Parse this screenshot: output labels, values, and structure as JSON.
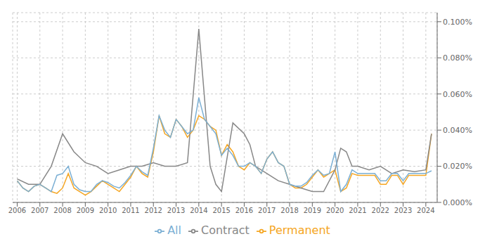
{
  "chart_data": {
    "type": "line",
    "xlim": [
      2005.8,
      2024.5
    ],
    "xticks": [
      2006,
      2007,
      2008,
      2009,
      2010,
      2011,
      2012,
      2013,
      2014,
      2015,
      2016,
      2017,
      2018,
      2019,
      2020,
      2021,
      2022,
      2023,
      2024
    ],
    "ylim": [
      0.0,
      0.00105
    ],
    "yticks": [
      {
        "value": 0.0,
        "label": "0.000%"
      },
      {
        "value": 0.0002,
        "label": "0.020%"
      },
      {
        "value": 0.0004,
        "label": "0.040%"
      },
      {
        "value": 0.0006,
        "label": "0.060%"
      },
      {
        "value": 0.0008,
        "label": "0.080%"
      },
      {
        "value": 0.001,
        "label": "0.100%"
      }
    ],
    "grid": true,
    "legend": "bottom",
    "series": [
      {
        "name": "Permanent",
        "color": "#f5a623",
        "x": [
          2006.0,
          2006.25,
          2006.5,
          2006.75,
          2007.0,
          2007.25,
          2007.5,
          2007.75,
          2008.0,
          2008.25,
          2008.5,
          2008.75,
          2009.0,
          2009.25,
          2009.5,
          2009.75,
          2010.0,
          2010.25,
          2010.5,
          2010.75,
          2011.0,
          2011.25,
          2011.5,
          2011.75,
          2012.0,
          2012.25,
          2012.5,
          2012.75,
          2013.0,
          2013.25,
          2013.5,
          2013.75,
          2014.0,
          2014.25,
          2014.5,
          2014.75,
          2015.0,
          2015.25,
          2015.5,
          2015.75,
          2016.0,
          2016.25,
          2016.5,
          2016.75,
          2017.0,
          2017.25,
          2017.5,
          2017.75,
          2018.0,
          2018.25,
          2018.5,
          2018.75,
          2019.0,
          2019.25,
          2019.5,
          2019.75,
          2020.0,
          2020.25,
          2020.5,
          2020.75,
          2021.0,
          2021.25,
          2021.5,
          2021.75,
          2022.0,
          2022.25,
          2022.5,
          2022.75,
          2023.0,
          2023.25,
          2023.5,
          2023.75,
          2024.0,
          2024.25
        ],
        "values": [
          0.00012,
          8e-05,
          6e-05,
          9e-05,
          0.0001,
          8e-05,
          6e-05,
          5e-05,
          8e-05,
          0.00016,
          8e-05,
          6e-05,
          4e-05,
          6e-05,
          9e-05,
          0.00012,
          0.0001,
          8e-05,
          6e-05,
          0.0001,
          0.00014,
          0.0002,
          0.00016,
          0.00014,
          0.00028,
          0.00048,
          0.00038,
          0.00036,
          0.00046,
          0.00042,
          0.00036,
          0.0004,
          0.00048,
          0.00046,
          0.00042,
          0.0004,
          0.00026,
          0.00032,
          0.00028,
          0.0002,
          0.00018,
          0.00022,
          0.0002,
          0.00016,
          0.00024,
          0.00028,
          0.00022,
          0.0002,
          0.0001,
          8e-05,
          8e-05,
          0.0001,
          0.00014,
          0.00018,
          0.00014,
          0.00016,
          0.00018,
          6e-05,
          8e-05,
          0.00016,
          0.00015,
          0.00015,
          0.00015,
          0.00015,
          0.0001,
          0.0001,
          0.00015,
          0.00015,
          0.0001,
          0.00015,
          0.00015,
          0.00015,
          0.00015,
          0.00038
        ]
      },
      {
        "name": "Contract",
        "color": "#888888",
        "x": [
          2006.0,
          2006.5,
          2007.0,
          2007.5,
          2008.0,
          2008.5,
          2009.0,
          2009.5,
          2010.0,
          2010.5,
          2011.0,
          2011.5,
          2012.0,
          2012.5,
          2013.0,
          2013.5,
          2014.0,
          2014.25,
          2014.5,
          2014.75,
          2015.0,
          2015.5,
          2016.0,
          2016.25,
          2016.5,
          2017.0,
          2017.5,
          2018.0,
          2018.5,
          2019.0,
          2019.5,
          2020.0,
          2020.25,
          2020.5,
          2020.75,
          2021.0,
          2021.5,
          2022.0,
          2022.5,
          2023.0,
          2023.5,
          2024.0,
          2024.25
        ],
        "values": [
          0.00013,
          0.0001,
          0.0001,
          0.0002,
          0.00038,
          0.00028,
          0.00022,
          0.0002,
          0.00016,
          0.00018,
          0.0002,
          0.0002,
          0.00022,
          0.0002,
          0.0002,
          0.00022,
          0.00096,
          0.00058,
          0.0002,
          0.0001,
          6e-05,
          0.00044,
          0.00038,
          0.00032,
          0.0002,
          0.00016,
          0.00012,
          0.0001,
          8e-05,
          6e-05,
          6e-05,
          0.00018,
          0.0003,
          0.00028,
          0.0002,
          0.0002,
          0.00018,
          0.0002,
          0.00016,
          0.00018,
          0.00017,
          0.00018,
          0.00038
        ]
      },
      {
        "name": "All",
        "color": "#7bafd4",
        "x": [
          2006.0,
          2006.25,
          2006.5,
          2006.75,
          2007.0,
          2007.25,
          2007.5,
          2007.75,
          2008.0,
          2008.25,
          2008.5,
          2008.75,
          2009.0,
          2009.25,
          2009.5,
          2009.75,
          2010.0,
          2010.25,
          2010.5,
          2010.75,
          2011.0,
          2011.25,
          2011.5,
          2011.75,
          2012.0,
          2012.25,
          2012.5,
          2012.75,
          2013.0,
          2013.25,
          2013.5,
          2013.75,
          2014.0,
          2014.25,
          2014.5,
          2014.75,
          2015.0,
          2015.25,
          2015.5,
          2015.75,
          2016.0,
          2016.25,
          2016.5,
          2016.75,
          2017.0,
          2017.25,
          2017.5,
          2017.75,
          2018.0,
          2018.25,
          2018.5,
          2018.75,
          2019.0,
          2019.25,
          2019.5,
          2019.75,
          2020.0,
          2020.25,
          2020.5,
          2020.75,
          2021.0,
          2021.25,
          2021.5,
          2021.75,
          2022.0,
          2022.25,
          2022.5,
          2022.75,
          2023.0,
          2023.25,
          2023.5,
          2023.75,
          2024.0,
          2024.25
        ],
        "values": [
          0.00012,
          8e-05,
          6e-05,
          9e-05,
          0.0001,
          8e-05,
          6e-05,
          0.00015,
          0.00016,
          0.0002,
          0.0001,
          7e-05,
          6e-05,
          6e-05,
          0.0001,
          0.00012,
          0.00011,
          9e-05,
          8e-05,
          0.00011,
          0.00015,
          0.0002,
          0.00017,
          0.00015,
          0.0003,
          0.00048,
          0.0004,
          0.00036,
          0.00046,
          0.00042,
          0.00038,
          0.0004,
          0.00058,
          0.00046,
          0.00042,
          0.00038,
          0.00026,
          0.0003,
          0.00026,
          0.0002,
          0.0002,
          0.00022,
          0.0002,
          0.00016,
          0.00024,
          0.00028,
          0.00022,
          0.0002,
          0.0001,
          9e-05,
          9e-05,
          0.00011,
          0.00015,
          0.00018,
          0.00015,
          0.00016,
          0.00028,
          6e-05,
          0.0001,
          0.00018,
          0.00016,
          0.00016,
          0.00016,
          0.00016,
          0.00012,
          0.00012,
          0.00016,
          0.00016,
          0.00012,
          0.00016,
          0.00016,
          0.00016,
          0.00016,
          0.000175
        ]
      }
    ]
  }
}
